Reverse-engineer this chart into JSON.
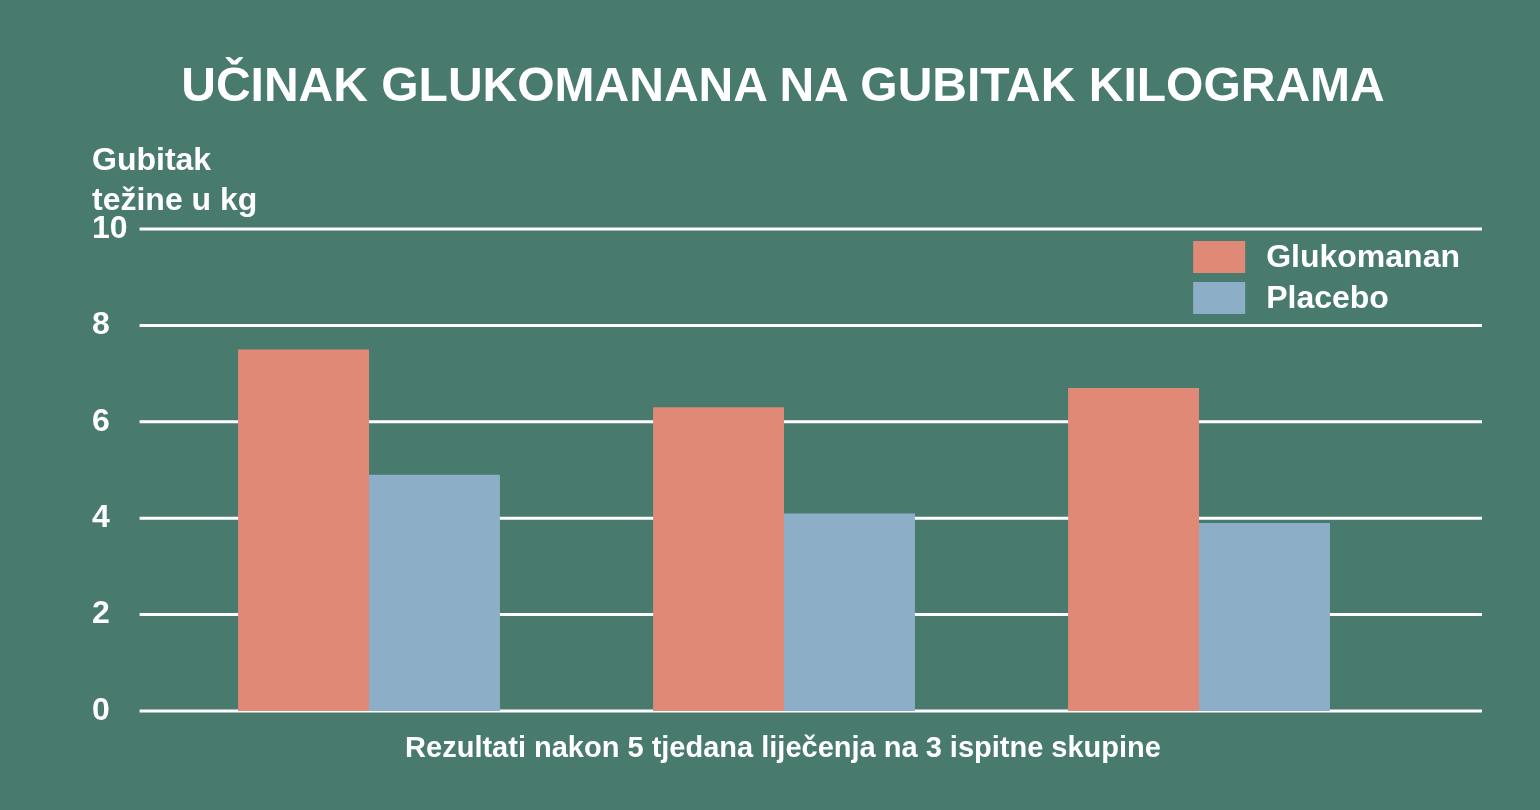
{
  "chart_data": {
    "type": "bar",
    "title": "UČINAK GLUKOMANANA NA GUBITAK KILOGRAMA",
    "xlabel": "Rezultati nakon 5 tjedana liječenja na 3 ispitne skupine",
    "ylabel": "Gubitak težine u kg",
    "categories": [
      null,
      null,
      null
    ],
    "series": [
      {
        "name": "Glukomanan",
        "color": "#e08977",
        "values": [
          7.5,
          6.3,
          6.7
        ]
      },
      {
        "name": "Placebo",
        "color": "#8cafc7",
        "values": [
          4.9,
          4.1,
          3.9
        ]
      }
    ],
    "ylim": [
      0,
      10
    ],
    "yticks": [
      0,
      2,
      4,
      6,
      8,
      10
    ],
    "grid": "y",
    "legend": "top right",
    "tick_labels": "y"
  }
}
